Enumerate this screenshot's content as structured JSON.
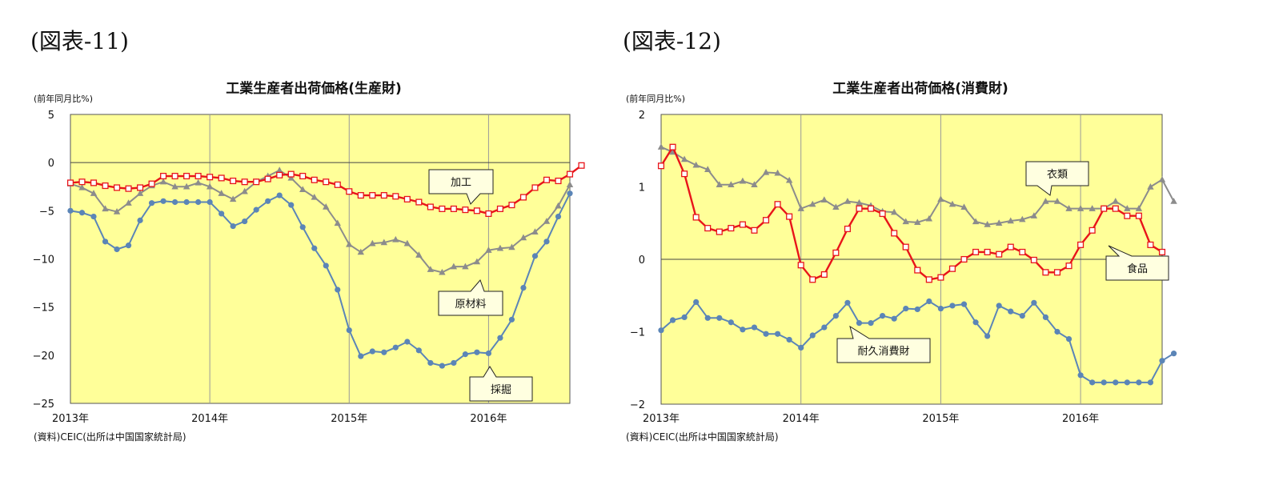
{
  "figure_labels": [
    "(図表-11)",
    "(図表-12)"
  ],
  "chart_data": [
    {
      "type": "line",
      "title": "工業生産者出荷価格(生産財)",
      "ylabel": "(前年同月比%)",
      "source": "(資料)CEIC(出所は中国国家統計局)",
      "ylim": [
        -25,
        5
      ],
      "yticks": [
        5,
        0,
        -5,
        -10,
        -15,
        -20,
        -25
      ],
      "xlim": [
        0,
        43
      ],
      "x_tick_positions": [
        0,
        12,
        24,
        36
      ],
      "x_tick_labels": [
        "2013年",
        "2014年",
        "2015年",
        "2016年"
      ],
      "grid": "vertical-yearly",
      "series": [
        {
          "name": "原材料",
          "color": "#8c8c8c",
          "marker": "triangle",
          "values": [
            -2.2,
            -2.6,
            -3.2,
            -4.8,
            -5.1,
            -4.2,
            -3.2,
            -2.4,
            -2.0,
            -2.5,
            -2.5,
            -2.1,
            -2.5,
            -3.2,
            -3.8,
            -3.0,
            -2.0,
            -1.4,
            -0.8,
            -1.6,
            -2.8,
            -3.6,
            -4.6,
            -6.3,
            -8.5,
            -9.3,
            -8.4,
            -8.3,
            -8.0,
            -8.4,
            -9.6,
            -11.1,
            -11.4,
            -10.8,
            -10.8,
            -10.3,
            -9.1,
            -8.9,
            -8.8,
            -7.8,
            -7.2,
            -6.1,
            -4.5,
            -2.3
          ]
        },
        {
          "name": "加工",
          "color": "#e8141a",
          "marker": "square-open",
          "values": [
            -2.1,
            -2.0,
            -2.1,
            -2.4,
            -2.6,
            -2.7,
            -2.6,
            -2.2,
            -1.4,
            -1.4,
            -1.4,
            -1.4,
            -1.5,
            -1.6,
            -1.9,
            -2.0,
            -2.0,
            -1.7,
            -1.3,
            -1.2,
            -1.4,
            -1.8,
            -2.0,
            -2.3,
            -3.0,
            -3.4,
            -3.4,
            -3.4,
            -3.5,
            -3.8,
            -4.1,
            -4.6,
            -4.8,
            -4.8,
            -4.9,
            -5.0,
            -5.3,
            -4.8,
            -4.4,
            -3.6,
            -2.6,
            -1.8,
            -1.9,
            -1.2,
            -0.3
          ]
        },
        {
          "name": "採掘",
          "color": "#5b85b7",
          "marker": "circle",
          "values": [
            -5.0,
            -5.2,
            -5.6,
            -8.2,
            -9.0,
            -8.6,
            -6.0,
            -4.2,
            -4.0,
            -4.1,
            -4.1,
            -4.1,
            -4.1,
            -5.3,
            -6.6,
            -6.1,
            -4.9,
            -4.0,
            -3.4,
            -4.4,
            -6.7,
            -8.9,
            -10.7,
            -13.2,
            -17.4,
            -20.1,
            -19.6,
            -19.7,
            -19.2,
            -18.6,
            -19.5,
            -20.8,
            -21.1,
            -20.8,
            -19.9,
            -19.7,
            -19.8,
            -18.2,
            -16.3,
            -13.0,
            -9.7,
            -8.2,
            -5.6,
            -3.2
          ]
        }
      ],
      "annotations": [
        {
          "text": "加工",
          "series": "加工"
        },
        {
          "text": "原材料",
          "series": "原材料"
        },
        {
          "text": "採掘",
          "series": "採掘"
        }
      ]
    },
    {
      "type": "line",
      "title": "工業生産者出荷価格(消費財)",
      "ylabel": "(前年同月比%)",
      "source": "(資料)CEIC(出所は中国国家統計局)",
      "ylim": [
        -2,
        2
      ],
      "yticks": [
        2,
        1,
        0,
        -1,
        -2
      ],
      "xlim": [
        0,
        43
      ],
      "x_tick_positions": [
        0,
        12,
        24,
        36
      ],
      "x_tick_labels": [
        "2013年",
        "2014年",
        "2015年",
        "2016年"
      ],
      "grid": "vertical-yearly",
      "series": [
        {
          "name": "衣類",
          "color": "#8c8c8c",
          "marker": "triangle",
          "values": [
            1.55,
            1.48,
            1.38,
            1.3,
            1.24,
            1.03,
            1.03,
            1.08,
            1.03,
            1.2,
            1.19,
            1.09,
            0.7,
            0.76,
            0.82,
            0.72,
            0.8,
            0.78,
            0.74,
            0.66,
            0.65,
            0.52,
            0.51,
            0.56,
            0.83,
            0.76,
            0.72,
            0.52,
            0.48,
            0.5,
            0.53,
            0.55,
            0.6,
            0.8,
            0.8,
            0.7,
            0.7,
            0.7,
            0.7,
            0.8,
            0.7,
            0.7,
            1.0,
            1.1,
            0.8
          ]
        },
        {
          "name": "食品",
          "color": "#e8141a",
          "marker": "square-open",
          "values": [
            1.29,
            1.55,
            1.18,
            0.58,
            0.43,
            0.38,
            0.43,
            0.48,
            0.4,
            0.54,
            0.76,
            0.59,
            -0.08,
            -0.28,
            -0.21,
            0.09,
            0.42,
            0.7,
            0.7,
            0.63,
            0.36,
            0.17,
            -0.15,
            -0.28,
            -0.25,
            -0.13,
            0.0,
            0.1,
            0.1,
            0.07,
            0.17,
            0.1,
            -0.01,
            -0.18,
            -0.18,
            -0.09,
            0.2,
            0.4,
            0.7,
            0.7,
            0.6,
            0.6,
            0.2,
            0.1
          ]
        },
        {
          "name": "耐久消費財",
          "color": "#5b85b7",
          "marker": "circle",
          "values": [
            -0.98,
            -0.84,
            -0.8,
            -0.59,
            -0.81,
            -0.81,
            -0.87,
            -0.97,
            -0.94,
            -1.03,
            -1.03,
            -1.11,
            -1.22,
            -1.05,
            -0.94,
            -0.78,
            -0.6,
            -0.88,
            -0.88,
            -0.78,
            -0.82,
            -0.68,
            -0.69,
            -0.58,
            -0.68,
            -0.64,
            -0.62,
            -0.87,
            -1.06,
            -0.64,
            -0.72,
            -0.78,
            -0.6,
            -0.8,
            -1.0,
            -1.1,
            -1.6,
            -1.7,
            -1.7,
            -1.7,
            -1.7,
            -1.7,
            -1.7,
            -1.4,
            -1.3
          ]
        }
      ],
      "annotations": [
        {
          "text": "衣類",
          "series": "衣類"
        },
        {
          "text": "食品",
          "series": "食品"
        },
        {
          "text": "耐久消費財",
          "series": "耐久消費財"
        }
      ]
    }
  ]
}
